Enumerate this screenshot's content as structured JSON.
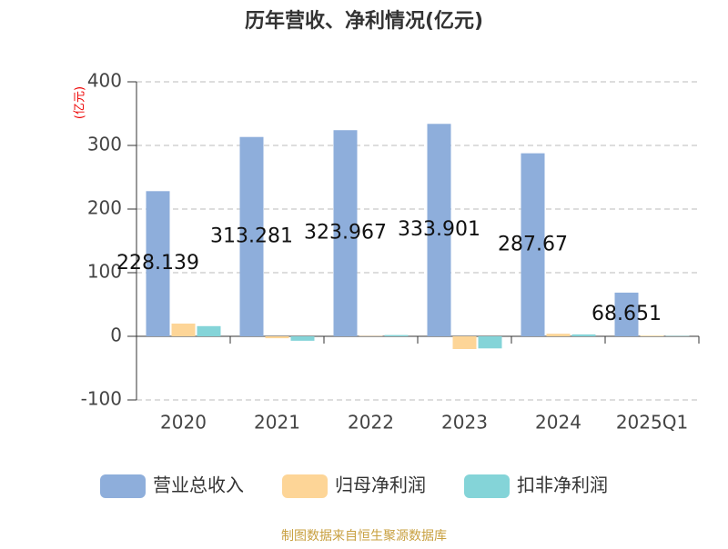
{
  "chart_data": {
    "type": "bar",
    "title": "历年营收、净利情况(亿元)",
    "y_label": "(亿元)",
    "categories": [
      "2020",
      "2021",
      "2022",
      "2023",
      "2024",
      "2025Q1"
    ],
    "series": [
      {
        "name": "营业总收入",
        "color": "#8eaedb",
        "values": [
          228.139,
          313.281,
          323.967,
          333.901,
          287.67,
          68.651
        ]
      },
      {
        "name": "归母净利润",
        "color": "#fdd597",
        "values": [
          20,
          -3,
          0.5,
          -20,
          4,
          1
        ]
      },
      {
        "name": "扣非净利润",
        "color": "#84d4d8",
        "values": [
          16,
          -7,
          2,
          -19,
          3,
          0.5
        ]
      }
    ],
    "value_labels_series": 0,
    "ylim": [
      -100,
      400
    ],
    "yticks": [
      -100,
      0,
      100,
      200,
      300,
      400
    ],
    "grid": true,
    "source": "制图数据来自恒生聚源数据库"
  }
}
